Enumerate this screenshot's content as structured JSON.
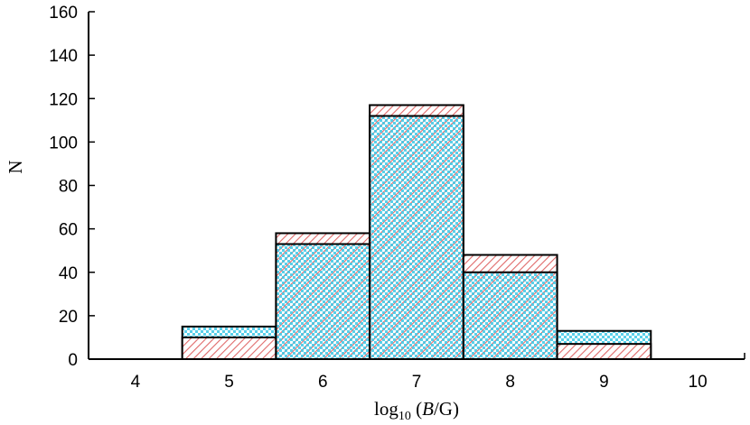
{
  "chart_data": {
    "type": "bar",
    "subtype": "overlapping-histogram",
    "xlabel_parts": {
      "prefix": "log",
      "subscript": "10",
      "open": " (",
      "italic": "B",
      "suffix": "/G)"
    },
    "ylabel": "N",
    "xlim": [
      3.5,
      10.5
    ],
    "ylim": [
      0,
      160
    ],
    "x_ticks": [
      4,
      5,
      6,
      7,
      8,
      9,
      10
    ],
    "y_ticks": [
      0,
      20,
      40,
      60,
      80,
      100,
      120,
      140,
      160
    ],
    "bin_centers": [
      5,
      6,
      7,
      8,
      9
    ],
    "bin_width": 1,
    "grid": false,
    "series": [
      {
        "pattern": "red-diagonal-hatch",
        "color": "#e06a6a",
        "values": [
          10,
          58,
          117,
          48,
          7
        ]
      },
      {
        "pattern": "cyan-checker",
        "color": "#3cc8e6",
        "values": [
          15,
          53,
          112,
          40,
          13
        ]
      }
    ]
  }
}
